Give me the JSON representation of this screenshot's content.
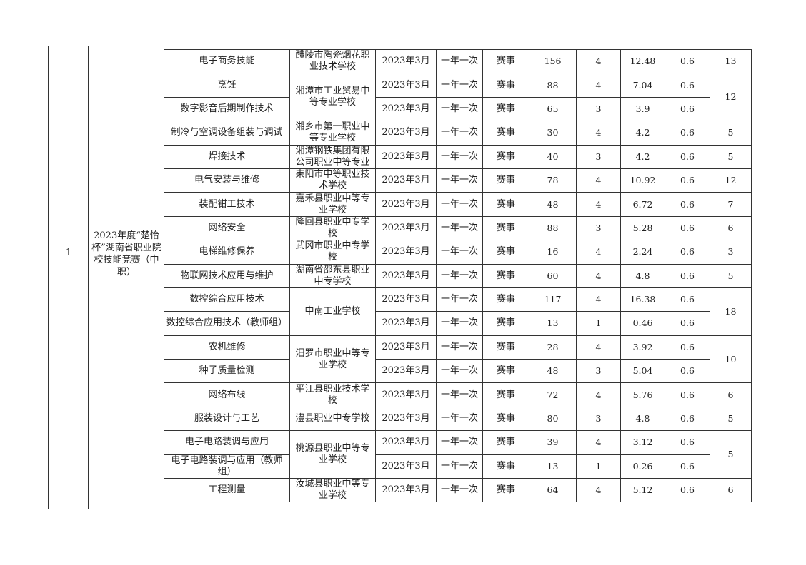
{
  "seq": "1",
  "competition": "2023年度“楚怡杯”湖南省职业院校技能竞赛（中职）",
  "rows": [
    {
      "name": "电子商务技能",
      "date": "2023年3月",
      "freq": "一年一次",
      "type": "赛事",
      "c1": "156",
      "c2": "4",
      "c3": "12.48",
      "c4": "0.6"
    },
    {
      "name": "烹饪",
      "date": "2023年3月",
      "freq": "一年一次",
      "type": "赛事",
      "c1": "88",
      "c2": "4",
      "c3": "7.04",
      "c4": "0.6"
    },
    {
      "name": "数字影音后期制作技术",
      "date": "2023年3月",
      "freq": "一年一次",
      "type": "赛事",
      "c1": "65",
      "c2": "3",
      "c3": "3.9",
      "c4": "0.6"
    },
    {
      "name": "制冷与空调设备组装与调试",
      "date": "2023年3月",
      "freq": "一年一次",
      "type": "赛事",
      "c1": "30",
      "c2": "4",
      "c3": "4.2",
      "c4": "0.6"
    },
    {
      "name": "焊接技术",
      "date": "2023年3月",
      "freq": "一年一次",
      "type": "赛事",
      "c1": "40",
      "c2": "3",
      "c3": "4.2",
      "c4": "0.6"
    },
    {
      "name": "电气安装与维修",
      "date": "2023年3月",
      "freq": "一年一次",
      "type": "赛事",
      "c1": "78",
      "c2": "4",
      "c3": "10.92",
      "c4": "0.6"
    },
    {
      "name": "装配钳工技术",
      "date": "2023年3月",
      "freq": "一年一次",
      "type": "赛事",
      "c1": "48",
      "c2": "4",
      "c3": "6.72",
      "c4": "0.6"
    },
    {
      "name": "网络安全",
      "date": "2023年3月",
      "freq": "一年一次",
      "type": "赛事",
      "c1": "88",
      "c2": "3",
      "c3": "5.28",
      "c4": "0.6"
    },
    {
      "name": "电梯维修保养",
      "date": "2023年3月",
      "freq": "一年一次",
      "type": "赛事",
      "c1": "16",
      "c2": "4",
      "c3": "2.24",
      "c4": "0.6"
    },
    {
      "name": "物联网技术应用与维护",
      "date": "2023年3月",
      "freq": "一年一次",
      "type": "赛事",
      "c1": "60",
      "c2": "4",
      "c3": "4.8",
      "c4": "0.6"
    },
    {
      "name": "数控综合应用技术",
      "date": "2023年3月",
      "freq": "一年一次",
      "type": "赛事",
      "c1": "117",
      "c2": "4",
      "c3": "16.38",
      "c4": "0.6"
    },
    {
      "name": "数控综合应用技术（教师组）",
      "date": "2023年3月",
      "freq": "一年一次",
      "type": "赛事",
      "c1": "13",
      "c2": "1",
      "c3": "0.46",
      "c4": "0.6"
    },
    {
      "name": "农机维修",
      "date": "2023年3月",
      "freq": "一年一次",
      "type": "赛事",
      "c1": "28",
      "c2": "4",
      "c3": "3.92",
      "c4": "0.6"
    },
    {
      "name": "种子质量检测",
      "date": "2023年3月",
      "freq": "一年一次",
      "type": "赛事",
      "c1": "48",
      "c2": "3",
      "c3": "5.04",
      "c4": "0.6"
    },
    {
      "name": "网络布线",
      "date": "2023年3月",
      "freq": "一年一次",
      "type": "赛事",
      "c1": "72",
      "c2": "4",
      "c3": "5.76",
      "c4": "0.6"
    },
    {
      "name": "服装设计与工艺",
      "date": "2023年3月",
      "freq": "一年一次",
      "type": "赛事",
      "c1": "80",
      "c2": "3",
      "c3": "4.8",
      "c4": "0.6"
    },
    {
      "name": "电子电路装调与应用",
      "date": "2023年3月",
      "freq": "一年一次",
      "type": "赛事",
      "c1": "39",
      "c2": "4",
      "c3": "3.12",
      "c4": "0.6"
    },
    {
      "name": "电子电路装调与应用（教师组）",
      "date": "2023年3月",
      "freq": "一年一次",
      "type": "赛事",
      "c1": "13",
      "c2": "1",
      "c3": "0.26",
      "c4": "0.6"
    },
    {
      "name": "工程测量",
      "date": "2023年3月",
      "freq": "一年一次",
      "type": "赛事",
      "c1": "64",
      "c2": "4",
      "c3": "5.12",
      "c4": "0.6"
    }
  ],
  "schools": [
    {
      "name": "醴陵市陶瓷烟花职业技术学校",
      "span": 1,
      "total": "13"
    },
    {
      "name": "湘潭市工业贸易中等专业学校",
      "span": 2,
      "total": "12"
    },
    {
      "name": "湘乡市第一职业中等专业学校",
      "span": 1,
      "total": "5"
    },
    {
      "name": "湘潭钢铁集团有限公司职业中等专业",
      "span": 1,
      "total": "5"
    },
    {
      "name": "耒阳市中等职业技术学校",
      "span": 1,
      "total": "12"
    },
    {
      "name": "嘉禾县职业中等专业学校",
      "span": 1,
      "total": "7"
    },
    {
      "name": "隆回县职业中专学校",
      "span": 1,
      "total": "6"
    },
    {
      "name": "武冈市职业中专学校",
      "span": 1,
      "total": "3"
    },
    {
      "name": "湖南省邵东县职业中专学校",
      "span": 1,
      "total": "5"
    },
    {
      "name": "中南工业学校",
      "span": 2,
      "total": "18"
    },
    {
      "name": "汨罗市职业中等专业学校",
      "span": 2,
      "total": "10"
    },
    {
      "name": "平江县职业技术学校",
      "span": 1,
      "total": "6"
    },
    {
      "name": "澧县职业中专学校",
      "span": 1,
      "total": "5"
    },
    {
      "name": "桃源县职业中等专业学校",
      "span": 2,
      "total": "5"
    },
    {
      "name": "汝城县职业中等专业学校",
      "span": 1,
      "total": "6"
    }
  ]
}
